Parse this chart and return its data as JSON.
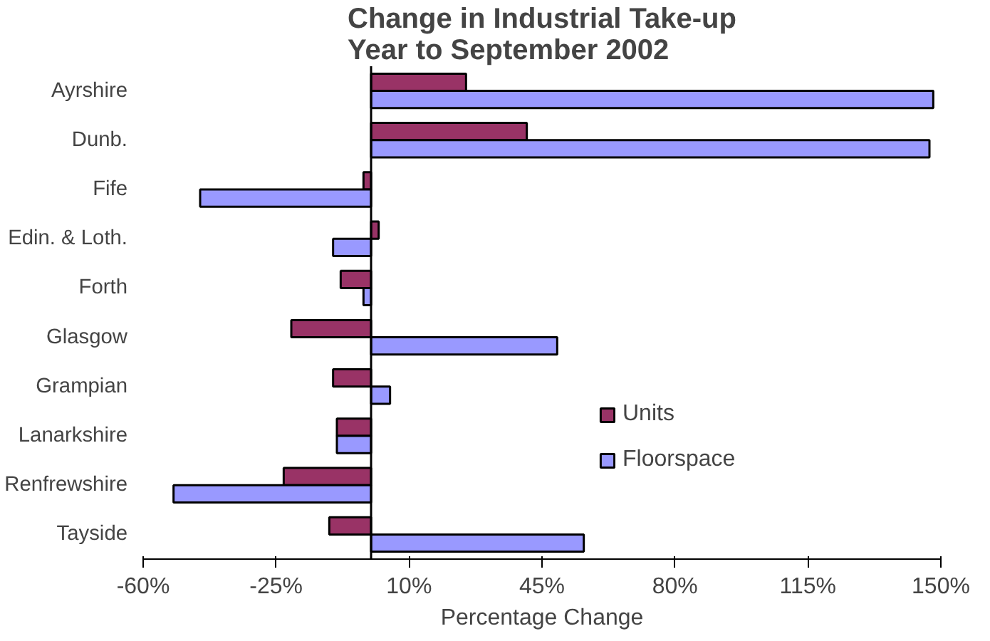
{
  "chart_data": {
    "type": "bar",
    "orientation": "horizontal",
    "title": "Change in Industrial Take-up\nYear to September 2002",
    "xlabel": "Percentage Change",
    "categories": [
      "Ayrshire",
      "Dunb.",
      "Fife",
      "Edin. & Loth.",
      "Forth",
      "Glasgow",
      "Grampian",
      "Lanarkshire",
      "Renfrewshire",
      "Tayside"
    ],
    "series": [
      {
        "name": "Units",
        "color": "#993366",
        "values": [
          25,
          41,
          -2,
          2,
          -8,
          -21,
          -10,
          -9,
          -23,
          -11
        ]
      },
      {
        "name": "Floorspace",
        "color": "#9999ff",
        "values": [
          148,
          147,
          -45,
          -10,
          -2,
          49,
          5,
          -9,
          -52,
          56
        ]
      }
    ],
    "xlim": [
      -60,
      150
    ],
    "xticks": [
      {
        "value": -60,
        "label": "-60%"
      },
      {
        "value": -25,
        "label": "-25%"
      },
      {
        "value": 10,
        "label": "10%"
      },
      {
        "value": 45,
        "label": "45%"
      },
      {
        "value": 80,
        "label": "80%"
      },
      {
        "value": 115,
        "label": "115%"
      },
      {
        "value": 150,
        "label": "150%"
      }
    ],
    "grid": false,
    "legend": "right"
  }
}
